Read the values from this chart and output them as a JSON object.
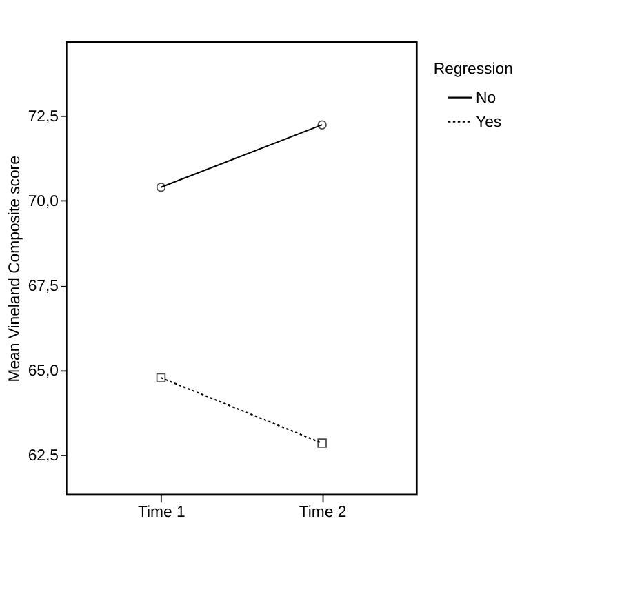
{
  "chart_data": {
    "type": "line",
    "ylabel": "Mean Vineland Composite score",
    "legend_title": "Regression",
    "legend": "top right",
    "grid": false,
    "categories": [
      "Time 1",
      "Time 2"
    ],
    "series": [
      {
        "name": "No",
        "color": "#000000",
        "values": [
          70.4,
          72.24
        ],
        "marker": "circle",
        "line_style": "solid"
      },
      {
        "name": "Yes",
        "color": "#000000",
        "values": [
          64.78,
          62.85
        ],
        "marker": "square",
        "line_style": "dotted"
      }
    ],
    "ylim": [
      61.33,
      74.68
    ],
    "yticks": [
      {
        "value": 62.5,
        "label": "62,5"
      },
      {
        "value": 65.0,
        "label": "65,0"
      },
      {
        "value": 67.5,
        "label": "67,5"
      },
      {
        "value": 70.0,
        "label": "70,0"
      },
      {
        "value": 72.5,
        "label": "72,5"
      }
    ]
  }
}
